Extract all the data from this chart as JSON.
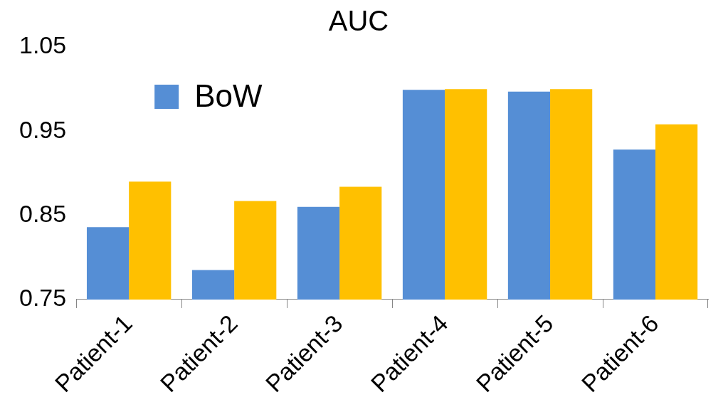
{
  "chart_data": {
    "type": "bar",
    "title": "AUC",
    "categories": [
      "Patient-1",
      "Patient-2",
      "Patient-3",
      "Patient-4",
      "Patient-5",
      "Patient-6"
    ],
    "series": [
      {
        "name": "BoW",
        "color": "#558ed5",
        "values": [
          0.836,
          0.785,
          0.86,
          0.999,
          0.997,
          0.928
        ]
      },
      {
        "color": "#ffc000",
        "values": [
          0.89,
          0.867,
          0.884,
          1.0,
          1.0,
          0.958
        ]
      }
    ],
    "ylim": [
      0.75,
      1.05
    ],
    "yticks": [
      0.75,
      0.85,
      0.95,
      1.05
    ],
    "grid": false,
    "legend": "top left"
  }
}
